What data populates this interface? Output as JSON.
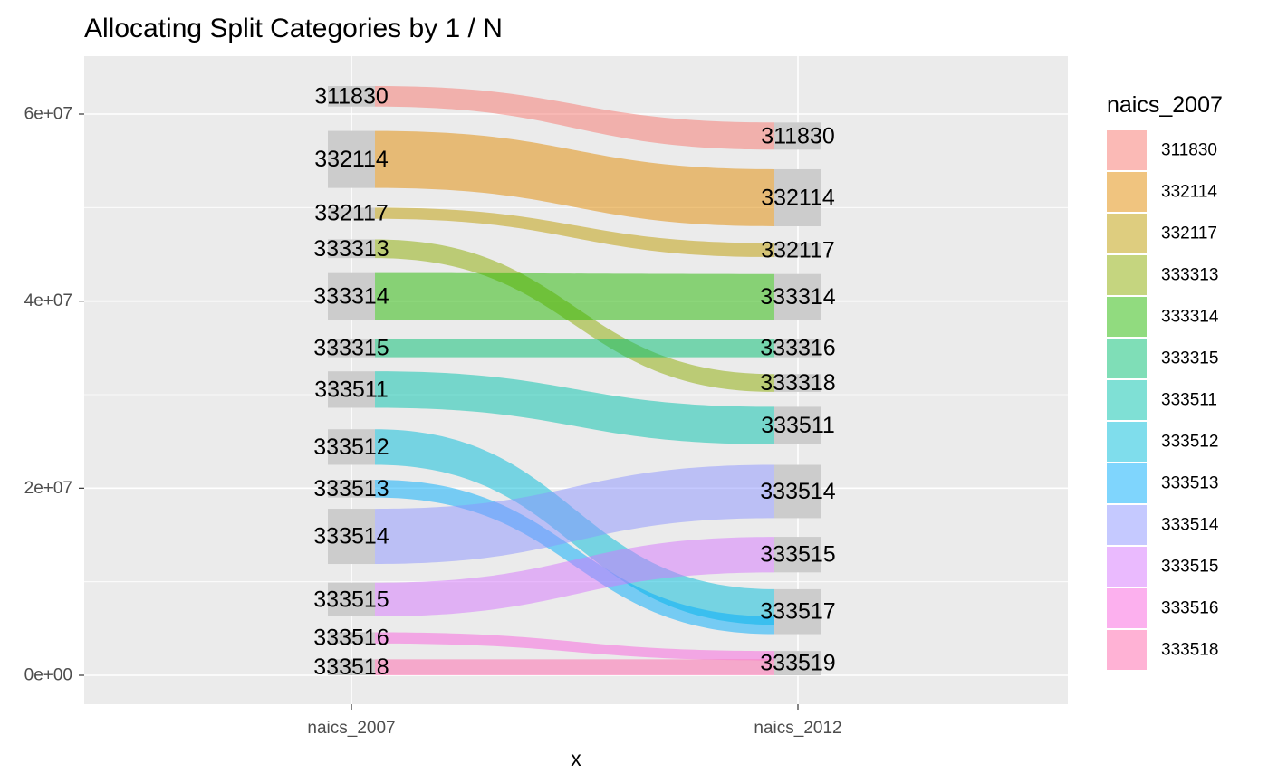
{
  "chart_data": {
    "type": "alluvial",
    "title": "Allocating Split Categories by 1 / N",
    "xlabel": "x",
    "ylabel": "",
    "axes": [
      "naics_2007",
      "naics_2012"
    ],
    "ylim": [
      -3000000,
      66000000
    ],
    "y_ticks": [
      {
        "value": 0,
        "label": "0e+00"
      },
      {
        "value": 20000000,
        "label": "2e+07"
      },
      {
        "value": 40000000,
        "label": "4e+07"
      },
      {
        "value": 60000000,
        "label": "6e+07"
      }
    ],
    "legend": {
      "title": "naics_2007",
      "position": "right"
    },
    "categories": [
      "311830",
      "332114",
      "332117",
      "333313",
      "333314",
      "333315",
      "333511",
      "333512",
      "333513",
      "333514",
      "333515",
      "333516",
      "333518"
    ],
    "colors": {
      "311830": "#F8766D",
      "332114": "#E18A00",
      "332117": "#BE9C00",
      "333313": "#8CAB00",
      "333314": "#24B700",
      "333315": "#00BE70",
      "333511": "#00C1AB",
      "333512": "#00BBDA",
      "333513": "#00ACFC",
      "333514": "#8B93FF",
      "333515": "#D575FE",
      "333516": "#F962DD",
      "333518": "#FF65AC"
    },
    "strata_2007": [
      {
        "label": "311830",
        "ymin": 60800000,
        "ymax": 63000000
      },
      {
        "label": "332114",
        "ymin": 52100000,
        "ymax": 58200000
      },
      {
        "label": "332117",
        "ymin": 48800000,
        "ymax": 50000000
      },
      {
        "label": "333313",
        "ymin": 44600000,
        "ymax": 46600000
      },
      {
        "label": "333314",
        "ymin": 38000000,
        "ymax": 43000000
      },
      {
        "label": "333315",
        "ymin": 34000000,
        "ymax": 36000000
      },
      {
        "label": "333511",
        "ymin": 28600000,
        "ymax": 32500000
      },
      {
        "label": "333512",
        "ymin": 22500000,
        "ymax": 26300000
      },
      {
        "label": "333513",
        "ymin": 19000000,
        "ymax": 20900000
      },
      {
        "label": "333514",
        "ymin": 11900000,
        "ymax": 17800000
      },
      {
        "label": "333515",
        "ymin": 6300000,
        "ymax": 9900000
      },
      {
        "label": "333516",
        "ymin": 3400000,
        "ymax": 4600000
      },
      {
        "label": "333518",
        "ymin": 0,
        "ymax": 1700000
      }
    ],
    "strata_2012": [
      {
        "label": "311830",
        "ymin": 56200000,
        "ymax": 59100000
      },
      {
        "label": "332114",
        "ymin": 48000000,
        "ymax": 54100000
      },
      {
        "label": "332117",
        "ymin": 44700000,
        "ymax": 46200000
      },
      {
        "label": "333314",
        "ymin": 38000000,
        "ymax": 42900000
      },
      {
        "label": "333316",
        "ymin": 34000000,
        "ymax": 36000000
      },
      {
        "label": "333318",
        "ymin": 30300000,
        "ymax": 32200000
      },
      {
        "label": "333511",
        "ymin": 24700000,
        "ymax": 28700000
      },
      {
        "label": "333514",
        "ymin": 16800000,
        "ymax": 22500000
      },
      {
        "label": "333515",
        "ymin": 11000000,
        "ymax": 14800000
      },
      {
        "label": "333517",
        "ymin": 4400000,
        "ymax": 9200000
      },
      {
        "label": "333519",
        "ymin": 0,
        "ymax": 2600000
      }
    ],
    "flows": [
      {
        "from": "311830",
        "to": "311830",
        "left": [
          60800000,
          63000000
        ],
        "right": [
          56200000,
          59100000
        ]
      },
      {
        "from": "332114",
        "to": "332114",
        "left": [
          52100000,
          58200000
        ],
        "right": [
          48000000,
          54100000
        ]
      },
      {
        "from": "332117",
        "to": "332117",
        "left": [
          48800000,
          50000000
        ],
        "right": [
          44700000,
          46200000
        ]
      },
      {
        "from": "333313",
        "to": "333318",
        "left": [
          44600000,
          46600000
        ],
        "right": [
          30300000,
          32200000
        ]
      },
      {
        "from": "333314",
        "to": "333314",
        "left": [
          38000000,
          43000000
        ],
        "right": [
          38000000,
          42900000
        ]
      },
      {
        "from": "333315",
        "to": "333316",
        "left": [
          34000000,
          36000000
        ],
        "right": [
          34000000,
          36000000
        ]
      },
      {
        "from": "333511",
        "to": "333511",
        "left": [
          28600000,
          32500000
        ],
        "right": [
          24700000,
          28700000
        ]
      },
      {
        "from": "333512",
        "to": "333517",
        "left": [
          22500000,
          26300000
        ],
        "right": [
          5400000,
          9200000
        ]
      },
      {
        "from": "333513",
        "to": "333517",
        "left": [
          19000000,
          20900000
        ],
        "right": [
          4400000,
          6300000
        ]
      },
      {
        "from": "333514",
        "to": "333514",
        "left": [
          11900000,
          17800000
        ],
        "right": [
          16800000,
          22500000
        ]
      },
      {
        "from": "333515",
        "to": "333515",
        "left": [
          6300000,
          9900000
        ],
        "right": [
          11000000,
          14800000
        ]
      },
      {
        "from": "333516",
        "to": "333519",
        "left": [
          3400000,
          4600000
        ],
        "right": [
          1600000,
          2600000
        ]
      },
      {
        "from": "333518",
        "to": "333519",
        "left": [
          0,
          1700000
        ],
        "right": [
          0,
          1700000
        ]
      }
    ]
  }
}
